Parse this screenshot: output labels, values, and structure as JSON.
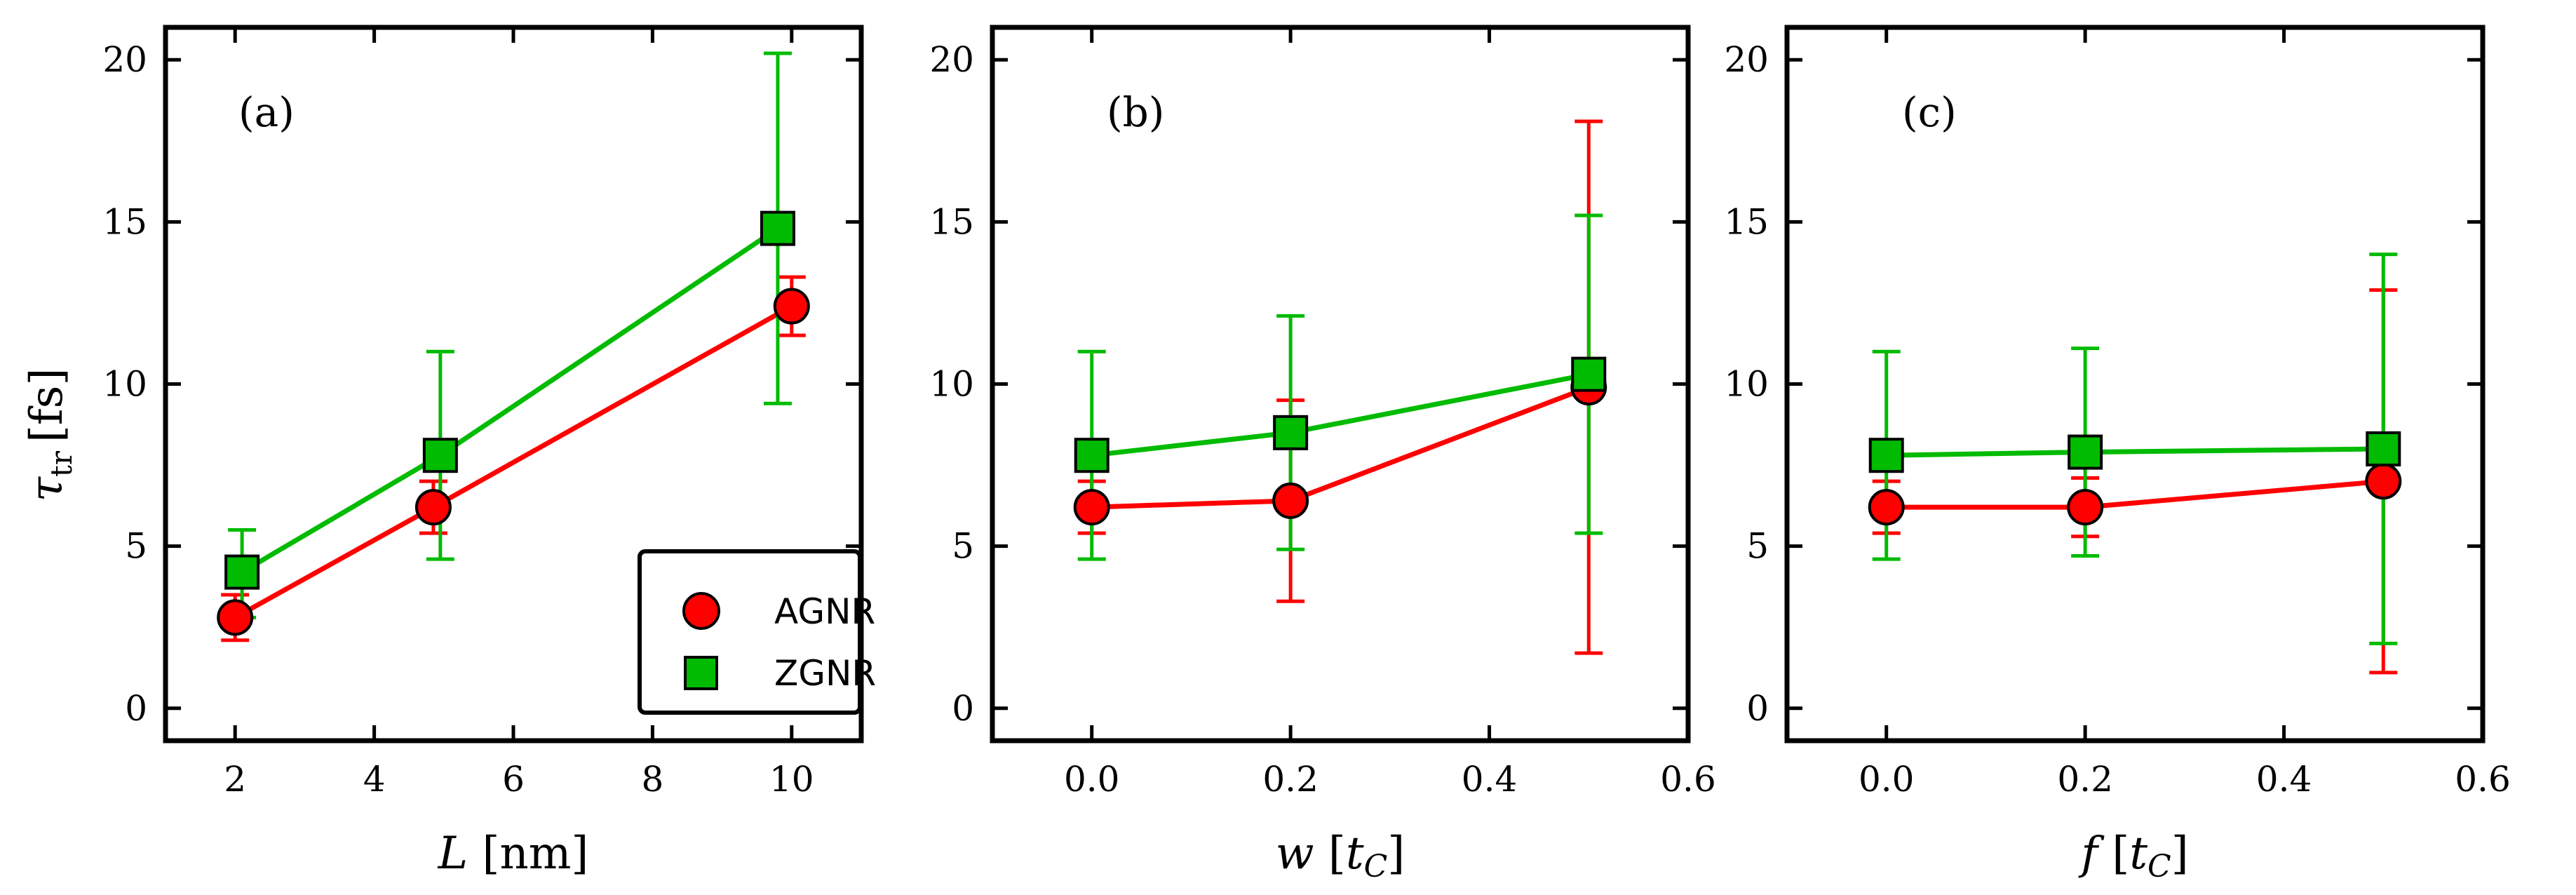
{
  "figure": {
    "ylabel_symbol": "τ",
    "ylabel_sub": "tr",
    "ylabel_unit": "[fs]",
    "legend": [
      {
        "label": "AGNR",
        "marker": "circle",
        "color": "#ff0000"
      },
      {
        "label": "ZGNR",
        "marker": "square",
        "color": "#00bb00"
      }
    ],
    "colors": {
      "agnr": "#ff0000",
      "zgnr": "#00bb00",
      "axis": "#000000"
    }
  },
  "chart_data": [
    {
      "type": "line",
      "panel_label": "(a)",
      "xlabel_var": "L",
      "xlabel_unit": " [nm]",
      "xlim": [
        1,
        11
      ],
      "ylim": [
        -1,
        21
      ],
      "xticks": [
        2,
        4,
        6,
        8,
        10
      ],
      "xtick_labels": [
        "2",
        "4",
        "6",
        "8",
        "10"
      ],
      "yticks": [
        0,
        5,
        10,
        15,
        20
      ],
      "ytick_labels": [
        "0",
        "5",
        "10",
        "15",
        "20"
      ],
      "show_y_tick_labels": true,
      "legend_position": "bottom-right",
      "series": [
        {
          "name": "AGNR",
          "marker": "circle",
          "x": [
            2,
            4.85,
            10
          ],
          "y": [
            2.8,
            6.2,
            12.4
          ],
          "err_low": [
            0.7,
            0.8,
            0.9
          ],
          "err_high": [
            0.7,
            0.8,
            0.9
          ]
        },
        {
          "name": "ZGNR",
          "marker": "square",
          "x": [
            2.1,
            4.95,
            9.8
          ],
          "y": [
            4.2,
            7.8,
            14.8
          ],
          "err_low": [
            1.4,
            3.2,
            5.4
          ],
          "err_high": [
            1.3,
            3.2,
            5.4
          ]
        }
      ]
    },
    {
      "type": "line",
      "panel_label": "(b)",
      "xlabel_var": "w",
      "xlabel_unit_open": " [",
      "xlabel_unit_var": "t",
      "xlabel_unit_sub": "C",
      "xlabel_unit_close": "]",
      "xlim": [
        -0.1,
        0.6
      ],
      "ylim": [
        -1,
        21
      ],
      "xticks": [
        0.0,
        0.2,
        0.4,
        0.6
      ],
      "xtick_labels": [
        "0.0",
        "0.2",
        "0.4",
        "0.6"
      ],
      "yticks": [
        0,
        5,
        10,
        15,
        20
      ],
      "ytick_labels": [
        "0",
        "5",
        "10",
        "15",
        "20"
      ],
      "show_y_tick_labels": true,
      "series": [
        {
          "name": "AGNR",
          "marker": "circle",
          "x": [
            0.0,
            0.2,
            0.5
          ],
          "y": [
            6.2,
            6.4,
            9.9
          ],
          "err_low": [
            0.8,
            3.1,
            8.2
          ],
          "err_high": [
            0.8,
            3.1,
            8.2
          ]
        },
        {
          "name": "ZGNR",
          "marker": "square",
          "x": [
            0.0,
            0.2,
            0.5
          ],
          "y": [
            7.8,
            8.5,
            10.3
          ],
          "err_low": [
            3.2,
            3.6,
            4.9
          ],
          "err_high": [
            3.2,
            3.6,
            4.9
          ]
        }
      ]
    },
    {
      "type": "line",
      "panel_label": "(c)",
      "xlabel_var": "f",
      "xlabel_unit_open": " [",
      "xlabel_unit_var": "t",
      "xlabel_unit_sub": "C",
      "xlabel_unit_close": "]",
      "xlim": [
        -0.1,
        0.6
      ],
      "ylim": [
        -1,
        21
      ],
      "xticks": [
        0.0,
        0.2,
        0.4,
        0.6
      ],
      "xtick_labels": [
        "0.0",
        "0.2",
        "0.4",
        "0.6"
      ],
      "yticks": [
        0,
        5,
        10,
        15,
        20
      ],
      "ytick_labels": [
        "0",
        "5",
        "10",
        "15",
        "20"
      ],
      "show_y_tick_labels": true,
      "series": [
        {
          "name": "AGNR",
          "marker": "circle",
          "x": [
            0.0,
            0.2,
            0.5
          ],
          "y": [
            6.2,
            6.2,
            7.0
          ],
          "err_low": [
            0.8,
            0.9,
            5.9
          ],
          "err_high": [
            0.8,
            0.9,
            5.9
          ]
        },
        {
          "name": "ZGNR",
          "marker": "square",
          "x": [
            0.0,
            0.2,
            0.5
          ],
          "y": [
            7.8,
            7.9,
            8.0
          ],
          "err_low": [
            3.2,
            3.2,
            6.0
          ],
          "err_high": [
            3.2,
            3.2,
            6.0
          ]
        }
      ]
    }
  ]
}
